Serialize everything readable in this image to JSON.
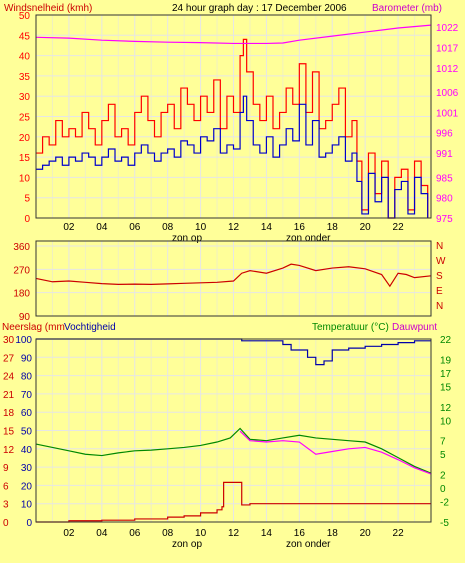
{
  "header": {
    "left_title": "Windsnelheid (kmh)",
    "center_title": "24 hour graph day : 17 December 2006",
    "right_title": "Barometer (mb)"
  },
  "colors": {
    "background": "#ffff99",
    "grid": "#e6e6e6",
    "axis_dark": "#333333",
    "wind_gust": "#ff0000",
    "wind_avg": "#0000cc",
    "barometer": "#ff00ff",
    "direction": "#cc0000",
    "humidity": "#0000aa",
    "temperature": "#008800",
    "dewpoint": "#ff00ff",
    "rain": "#cc0000",
    "green_text": "#008800"
  },
  "x_axis": {
    "ticks": [
      "02",
      "04",
      "06",
      "08",
      "10",
      "12",
      "14",
      "16",
      "18",
      "20",
      "22"
    ],
    "sunrise_label": "zon op",
    "sunset_label": "zon onder",
    "sunrise_hour": 11.7,
    "sunset_hour": 15.6
  },
  "panel_wind": {
    "left_ticks": [
      "0",
      "5",
      "10",
      "15",
      "20",
      "25",
      "30",
      "35",
      "40",
      "45",
      "50"
    ],
    "right_ticks": [
      "975",
      "980",
      "985",
      "991",
      "996",
      "1001",
      "1006",
      "1012",
      "1017",
      "1022"
    ]
  },
  "panel_direction": {
    "left_ticks": [
      "90",
      "180",
      "270",
      "360"
    ],
    "right_labels": [
      "N",
      "W",
      "S",
      "E",
      "N"
    ]
  },
  "panel_bottom": {
    "left_title": "Neerslag (mm",
    "left_title2": "Vochtigheid",
    "right_title": "Temperatuur (°C)",
    "right_title2": "Dauwpunt",
    "left_ticks_humidity": [
      "0",
      "10",
      "20",
      "30",
      "40",
      "50",
      "60",
      "70",
      "80",
      "90",
      "100"
    ],
    "left_ticks_rain": [
      "0",
      "3",
      "6",
      "9",
      "12",
      "15",
      "18",
      "21",
      "24",
      "27",
      "30"
    ],
    "right_ticks": [
      "-5",
      "-2",
      "0",
      "2",
      "5",
      "7",
      "10",
      "12",
      "15",
      "17",
      "19",
      "22"
    ]
  },
  "chart_data": [
    {
      "type": "line",
      "title": "24 hour graph day : 17 December 2006",
      "xlabel": "",
      "ylabel": "Windsnelheid (kmh)",
      "ylim": [
        0,
        50
      ],
      "xlim": [
        0,
        24
      ],
      "y2label": "Barometer (mb)",
      "y2lim": [
        975,
        1025
      ],
      "grid": true,
      "series": [
        {
          "axis": "left",
          "color": "#ff0000",
          "x": [
            0,
            0.4,
            0.8,
            1.2,
            1.6,
            2,
            2.4,
            2.8,
            3.2,
            3.6,
            4,
            4.4,
            4.8,
            5.2,
            5.6,
            6,
            6.4,
            6.8,
            7.2,
            7.6,
            8,
            8.4,
            8.8,
            9.2,
            9.6,
            10,
            10.4,
            10.8,
            11.2,
            11.6,
            12,
            12.4,
            12.6,
            12.8,
            13.2,
            13.6,
            14,
            14.4,
            14.8,
            15.2,
            15.6,
            16,
            16.4,
            16.8,
            17.2,
            17.6,
            18,
            18.4,
            18.8,
            19.2,
            19.5,
            19.8,
            20.2,
            20.6,
            21,
            21.4,
            21.8,
            22.2,
            22.6,
            23,
            23.4,
            23.8
          ],
          "y": [
            16,
            20,
            18,
            24,
            20,
            22,
            20,
            26,
            22,
            18,
            24,
            28,
            20,
            22,
            18,
            26,
            30,
            24,
            20,
            26,
            28,
            22,
            32,
            28,
            24,
            30,
            26,
            34,
            22,
            30,
            26,
            40,
            44,
            36,
            28,
            24,
            30,
            22,
            26,
            32,
            28,
            38,
            26,
            36,
            22,
            24,
            28,
            32,
            20,
            24,
            14,
            2,
            16,
            6,
            14,
            0,
            10,
            12,
            2,
            14,
            8,
            0
          ]
        },
        {
          "axis": "left",
          "color": "#0000cc",
          "x": [
            0,
            0.4,
            0.8,
            1.2,
            1.6,
            2,
            2.4,
            2.8,
            3.2,
            3.6,
            4,
            4.4,
            4.8,
            5.2,
            5.6,
            6,
            6.4,
            6.8,
            7.2,
            7.6,
            8,
            8.4,
            8.8,
            9.2,
            9.6,
            10,
            10.4,
            10.8,
            11.2,
            11.6,
            12,
            12.4,
            12.6,
            12.8,
            13.2,
            13.6,
            14,
            14.4,
            14.8,
            15.2,
            15.6,
            16,
            16.4,
            16.8,
            17.2,
            17.6,
            18,
            18.4,
            18.8,
            19.2,
            19.5,
            19.8,
            20.2,
            20.6,
            21,
            21.4,
            21.8,
            22.2,
            22.6,
            23,
            23.4,
            23.8
          ],
          "y": [
            12,
            13,
            14,
            15,
            13,
            15,
            14,
            16,
            15,
            13,
            15,
            17,
            14,
            15,
            13,
            16,
            18,
            16,
            14,
            16,
            17,
            15,
            19,
            18,
            16,
            20,
            19,
            22,
            16,
            18,
            17,
            26,
            30,
            24,
            18,
            16,
            20,
            15,
            18,
            22,
            19,
            28,
            18,
            24,
            15,
            16,
            18,
            20,
            14,
            16,
            9,
            1,
            11,
            4,
            10,
            0,
            7,
            9,
            1,
            10,
            6,
            0
          ]
        },
        {
          "axis": "right",
          "color": "#ff00ff",
          "x": [
            0,
            2,
            4,
            6,
            8,
            10,
            12,
            14,
            15,
            16,
            18,
            20,
            22,
            24
          ],
          "y": [
            1019.5,
            1019.3,
            1018.8,
            1018.5,
            1018.3,
            1018.2,
            1018.0,
            1018.0,
            1018.1,
            1018.8,
            1019.8,
            1020.8,
            1021.8,
            1022.5
          ]
        }
      ]
    },
    {
      "type": "line",
      "title": "",
      "ylabel": "",
      "ylim": [
        90,
        360
      ],
      "xlim": [
        0,
        24
      ],
      "grid": true,
      "series": [
        {
          "color": "#cc0000",
          "x": [
            0,
            1,
            2,
            3,
            4,
            5,
            6,
            7,
            8,
            9,
            10,
            11,
            12,
            12.5,
            13,
            14,
            15,
            15.5,
            16,
            17,
            18,
            19,
            20,
            21,
            21.5,
            22,
            22.5,
            23,
            24
          ],
          "y": [
            235,
            222,
            225,
            220,
            215,
            212,
            213,
            212,
            214,
            216,
            218,
            220,
            225,
            255,
            265,
            255,
            275,
            290,
            285,
            265,
            275,
            280,
            272,
            250,
            205,
            255,
            250,
            238,
            245
          ]
        }
      ]
    },
    {
      "type": "line",
      "title": "",
      "ylabel": "Vochtigheid",
      "ylim": [
        0,
        100
      ],
      "xlim": [
        0,
        24
      ],
      "y2label": "Temperatuur (°C)",
      "y2lim": [
        -5,
        22
      ],
      "grid": true,
      "series": [
        {
          "axis": "left",
          "color": "#0000aa",
          "x": [
            0,
            12.3,
            12.5,
            14,
            15,
            15.5,
            16,
            16.5,
            17,
            17.5,
            18,
            19,
            20,
            21,
            22,
            23,
            24
          ],
          "y": [
            100,
            100,
            99,
            99,
            97,
            94,
            94,
            90,
            86,
            88,
            94,
            95,
            96,
            97,
            98,
            99,
            99
          ]
        },
        {
          "axis": "right",
          "color": "#008800",
          "x": [
            0,
            1,
            2,
            3,
            4,
            5,
            6,
            7,
            8,
            9,
            10,
            11,
            11.8,
            12.4,
            13,
            14,
            15,
            16,
            17,
            18,
            19,
            20,
            21,
            22,
            23,
            24
          ],
          "y": [
            6.5,
            6.0,
            5.5,
            5.0,
            4.8,
            5.2,
            5.5,
            5.6,
            5.8,
            6.0,
            6.3,
            6.8,
            7.4,
            8.8,
            7.2,
            7.0,
            7.4,
            7.8,
            7.4,
            7.2,
            7.0,
            6.8,
            5.8,
            4.5,
            3.2,
            2.2
          ]
        },
        {
          "axis": "right",
          "color": "#ff00ff",
          "x": [
            12.4,
            13,
            14,
            15,
            16,
            17,
            18,
            19,
            20,
            21,
            22,
            23,
            24
          ],
          "y": [
            8.4,
            7.0,
            6.8,
            7.0,
            6.8,
            5.0,
            5.4,
            5.8,
            6.0,
            5.3,
            4.2,
            3.0,
            2.1
          ]
        },
        {
          "axis": "rain",
          "color": "#cc0000",
          "ylim": [
            0,
            30
          ],
          "x": [
            0,
            2,
            4,
            6,
            8,
            9,
            10,
            11,
            11.3,
            11.4,
            12.4,
            12.5,
            13,
            24
          ],
          "y": [
            0,
            0.2,
            0.3,
            0.5,
            0.8,
            1.0,
            1.5,
            2.0,
            2.5,
            6.5,
            6.5,
            2.8,
            3.0,
            3.0
          ]
        }
      ]
    }
  ]
}
